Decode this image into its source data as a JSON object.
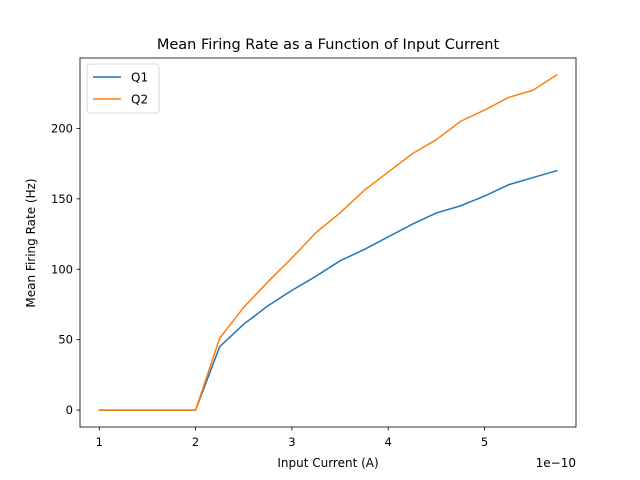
{
  "chart_data": {
    "type": "line",
    "title": "Mean Firing Rate as a Function of Input Current",
    "xlabel": "Input Current (A)",
    "ylabel": "Mean Firing Rate (Hz)",
    "x_scale_label": "1e−10",
    "x_scale_factor": 1e-10,
    "xlim": [
      0.8,
      5.95
    ],
    "ylim": [
      -12,
      250
    ],
    "x_ticks": [
      1,
      2,
      3,
      4,
      5
    ],
    "y_ticks": [
      0,
      50,
      100,
      150,
      200
    ],
    "grid": false,
    "legend_position": "top-left",
    "x": [
      1.0,
      1.25,
      1.5,
      1.75,
      2.0,
      2.25,
      2.5,
      2.75,
      3.0,
      3.25,
      3.5,
      3.75,
      4.0,
      4.25,
      4.5,
      4.75,
      5.0,
      5.25,
      5.5,
      5.75
    ],
    "series": [
      {
        "name": "Q1",
        "color": "#1f77b4",
        "values": [
          0,
          0,
          0,
          0,
          0,
          45,
          61,
          74,
          85,
          95,
          106,
          114,
          123,
          132,
          140,
          145,
          152,
          160,
          165,
          170
        ]
      },
      {
        "name": "Q2",
        "color": "#ff7f0e",
        "values": [
          0,
          0,
          0,
          0,
          0,
          51,
          73,
          91,
          108,
          126,
          140,
          156,
          169,
          182,
          192,
          205,
          213,
          222,
          227,
          238
        ]
      }
    ]
  }
}
